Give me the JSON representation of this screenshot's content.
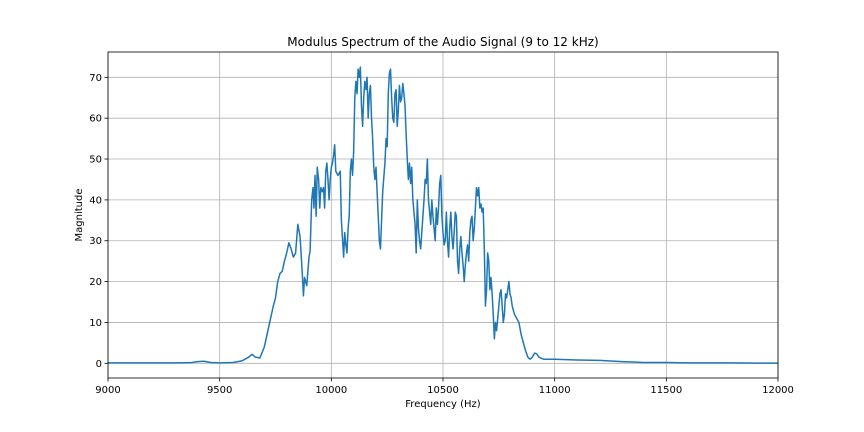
{
  "chart_data": {
    "type": "line",
    "title": "Modulus Spectrum of the Audio Signal (9 to 12 kHz)",
    "xlabel": "Frequency (Hz)",
    "ylabel": "Magnitude",
    "xlim": [
      9000,
      12000
    ],
    "ylim": [
      -3.6,
      76.2
    ],
    "xticks": [
      9000,
      9500,
      10000,
      10500,
      11000,
      11500,
      12000
    ],
    "yticks": [
      0,
      10,
      20,
      30,
      40,
      50,
      60,
      70
    ],
    "grid": true,
    "line_color": "#1f77b4",
    "series": [
      {
        "points": [
          [
            9000,
            0.1
          ],
          [
            9100,
            0.1
          ],
          [
            9200,
            0.1
          ],
          [
            9300,
            0.1
          ],
          [
            9370,
            0.15
          ],
          [
            9400,
            0.4
          ],
          [
            9430,
            0.5
          ],
          [
            9460,
            0.2
          ],
          [
            9500,
            0.1
          ],
          [
            9560,
            0.2
          ],
          [
            9600,
            0.6
          ],
          [
            9630,
            1.5
          ],
          [
            9645,
            2.2
          ],
          [
            9660,
            1.5
          ],
          [
            9680,
            1.3
          ],
          [
            9700,
            4
          ],
          [
            9720,
            9
          ],
          [
            9740,
            14
          ],
          [
            9750,
            16
          ],
          [
            9760,
            20
          ],
          [
            9770,
            22
          ],
          [
            9780,
            22.5
          ],
          [
            9790,
            25
          ],
          [
            9800,
            27
          ],
          [
            9810,
            29.5
          ],
          [
            9820,
            28
          ],
          [
            9830,
            26
          ],
          [
            9840,
            27
          ],
          [
            9850,
            34
          ],
          [
            9860,
            31
          ],
          [
            9870,
            22
          ],
          [
            9875,
            16.5
          ],
          [
            9880,
            21
          ],
          [
            9890,
            19
          ],
          [
            9900,
            26
          ],
          [
            9905,
            27.5
          ],
          [
            9912,
            40
          ],
          [
            9918,
            43
          ],
          [
            9922,
            38
          ],
          [
            9927,
            46
          ],
          [
            9932,
            36
          ],
          [
            9937,
            48
          ],
          [
            9943,
            45
          ],
          [
            9948,
            38
          ],
          [
            9953,
            43
          ],
          [
            9960,
            42
          ],
          [
            9965,
            43
          ],
          [
            9970,
            38
          ],
          [
            9975,
            47
          ],
          [
            9980,
            49
          ],
          [
            9985,
            45
          ],
          [
            9990,
            40
          ],
          [
            9995,
            45
          ],
          [
            10000,
            48
          ],
          [
            10005,
            49
          ],
          [
            10010,
            51
          ],
          [
            10015,
            53.5
          ],
          [
            10020,
            47
          ],
          [
            10030,
            46
          ],
          [
            10040,
            47
          ],
          [
            10045,
            35
          ],
          [
            10055,
            26
          ],
          [
            10060,
            32
          ],
          [
            10065,
            29
          ],
          [
            10070,
            27
          ],
          [
            10075,
            33
          ],
          [
            10080,
            36
          ],
          [
            10085,
            47
          ],
          [
            10090,
            50
          ],
          [
            10095,
            46
          ],
          [
            10100,
            52
          ],
          [
            10105,
            65
          ],
          [
            10110,
            69
          ],
          [
            10115,
            66
          ],
          [
            10120,
            72
          ],
          [
            10125,
            70
          ],
          [
            10130,
            72.5
          ],
          [
            10135,
            63
          ],
          [
            10140,
            58
          ],
          [
            10145,
            65
          ],
          [
            10150,
            69
          ],
          [
            10155,
            67
          ],
          [
            10160,
            70
          ],
          [
            10165,
            60
          ],
          [
            10170,
            66
          ],
          [
            10175,
            68
          ],
          [
            10180,
            60
          ],
          [
            10185,
            55
          ],
          [
            10190,
            48
          ],
          [
            10195,
            45
          ],
          [
            10200,
            48
          ],
          [
            10210,
            36
          ],
          [
            10215,
            30
          ],
          [
            10220,
            28
          ],
          [
            10225,
            35
          ],
          [
            10230,
            42
          ],
          [
            10240,
            49
          ],
          [
            10245,
            55
          ],
          [
            10250,
            53
          ],
          [
            10255,
            66
          ],
          [
            10260,
            71
          ],
          [
            10265,
            72
          ],
          [
            10270,
            65
          ],
          [
            10275,
            60
          ],
          [
            10280,
            59
          ],
          [
            10285,
            66
          ],
          [
            10290,
            67
          ],
          [
            10295,
            58
          ],
          [
            10300,
            62
          ],
          [
            10305,
            68
          ],
          [
            10310,
            64
          ],
          [
            10315,
            65
          ],
          [
            10320,
            68.5
          ],
          [
            10325,
            66
          ],
          [
            10330,
            63
          ],
          [
            10335,
            56
          ],
          [
            10340,
            50
          ],
          [
            10345,
            45
          ],
          [
            10350,
            49
          ],
          [
            10355,
            44
          ],
          [
            10360,
            48
          ],
          [
            10365,
            40
          ],
          [
            10370,
            37
          ],
          [
            10375,
            34
          ],
          [
            10380,
            27
          ],
          [
            10385,
            40
          ],
          [
            10390,
            33
          ],
          [
            10395,
            30
          ],
          [
            10400,
            28
          ],
          [
            10405,
            32
          ],
          [
            10410,
            36
          ],
          [
            10415,
            40
          ],
          [
            10420,
            45
          ],
          [
            10425,
            44
          ],
          [
            10430,
            50
          ],
          [
            10435,
            40
          ],
          [
            10440,
            37
          ],
          [
            10445,
            34
          ],
          [
            10450,
            40
          ],
          [
            10455,
            36
          ],
          [
            10460,
            33
          ],
          [
            10465,
            30
          ],
          [
            10470,
            38
          ],
          [
            10475,
            34
          ],
          [
            10480,
            38
          ],
          [
            10485,
            44
          ],
          [
            10490,
            46
          ],
          [
            10495,
            36
          ],
          [
            10500,
            32
          ],
          [
            10505,
            29
          ],
          [
            10510,
            30
          ],
          [
            10515,
            37
          ],
          [
            10520,
            30
          ],
          [
            10525,
            26
          ],
          [
            10530,
            33
          ],
          [
            10535,
            37
          ],
          [
            10540,
            31
          ],
          [
            10545,
            28
          ],
          [
            10550,
            32
          ],
          [
            10555,
            37
          ],
          [
            10560,
            36
          ],
          [
            10565,
            25
          ],
          [
            10570,
            22
          ],
          [
            10575,
            28
          ],
          [
            10580,
            31
          ],
          [
            10585,
            27
          ],
          [
            10590,
            24
          ],
          [
            10595,
            20
          ],
          [
            10600,
            24
          ],
          [
            10605,
            27
          ],
          [
            10610,
            29
          ],
          [
            10615,
            25
          ],
          [
            10620,
            32
          ],
          [
            10625,
            35
          ],
          [
            10630,
            36
          ],
          [
            10635,
            30
          ],
          [
            10640,
            33
          ],
          [
            10645,
            38
          ],
          [
            10650,
            43
          ],
          [
            10655,
            41
          ],
          [
            10660,
            43
          ],
          [
            10665,
            38
          ],
          [
            10670,
            39
          ],
          [
            10675,
            37
          ],
          [
            10680,
            38
          ],
          [
            10685,
            28
          ],
          [
            10690,
            14
          ],
          [
            10695,
            18
          ],
          [
            10700,
            27
          ],
          [
            10705,
            25
          ],
          [
            10710,
            18
          ],
          [
            10715,
            21
          ],
          [
            10720,
            17
          ],
          [
            10725,
            12
          ],
          [
            10730,
            6
          ],
          [
            10735,
            10
          ],
          [
            10740,
            8
          ],
          [
            10745,
            11
          ],
          [
            10750,
            14
          ],
          [
            10755,
            17
          ],
          [
            10760,
            18
          ],
          [
            10765,
            14
          ],
          [
            10770,
            10
          ],
          [
            10775,
            12
          ],
          [
            10780,
            17
          ],
          [
            10785,
            16
          ],
          [
            10790,
            18
          ],
          [
            10795,
            20
          ],
          [
            10800,
            17
          ],
          [
            10805,
            16
          ],
          [
            10810,
            14
          ],
          [
            10815,
            13
          ],
          [
            10820,
            12
          ],
          [
            10830,
            11
          ],
          [
            10840,
            10
          ],
          [
            10850,
            7
          ],
          [
            10860,
            5
          ],
          [
            10870,
            3
          ],
          [
            10880,
            1.5
          ],
          [
            10890,
            1
          ],
          [
            10900,
            1.5
          ],
          [
            10910,
            2.5
          ],
          [
            10920,
            2.3
          ],
          [
            10930,
            1.5
          ],
          [
            10950,
            1
          ],
          [
            11000,
            1
          ],
          [
            11050,
            0.9
          ],
          [
            11100,
            0.8
          ],
          [
            11200,
            0.7
          ],
          [
            11300,
            0.4
          ],
          [
            11400,
            0.2
          ],
          [
            11500,
            0.2
          ],
          [
            11600,
            0.1
          ],
          [
            11700,
            0.1
          ],
          [
            11800,
            0.1
          ],
          [
            11900,
            0.05
          ],
          [
            12000,
            0.05
          ]
        ]
      }
    ]
  }
}
